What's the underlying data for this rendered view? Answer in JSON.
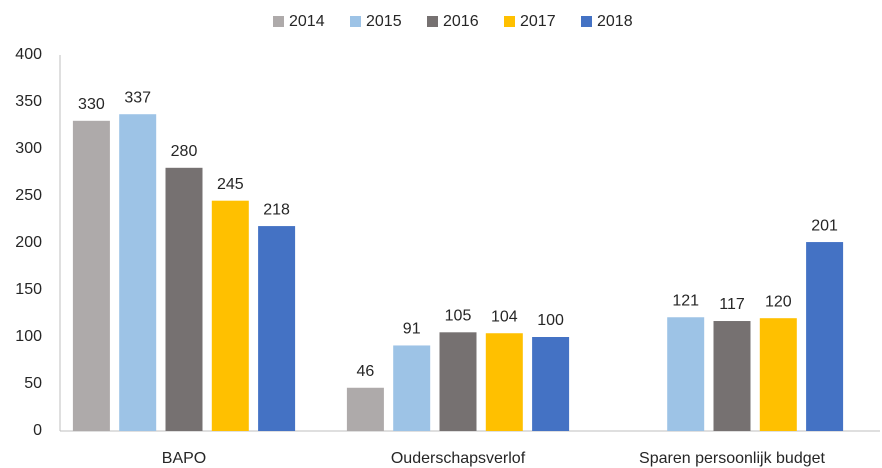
{
  "chart_data": {
    "type": "bar",
    "categories": [
      "BAPO",
      "Ouderschapsverlof",
      "Sparen persoonlijk budget"
    ],
    "series": [
      {
        "name": "2014",
        "color": "#aeaaaa",
        "values": [
          330,
          46,
          null
        ]
      },
      {
        "name": "2015",
        "color": "#9dc3e6",
        "values": [
          337,
          91,
          121
        ]
      },
      {
        "name": "2016",
        "color": "#767171",
        "values": [
          280,
          105,
          117
        ]
      },
      {
        "name": "2017",
        "color": "#ffc000",
        "values": [
          245,
          104,
          120
        ]
      },
      {
        "name": "2018",
        "color": "#4472c4",
        "values": [
          218,
          100,
          201
        ]
      }
    ],
    "ylim": [
      0,
      400
    ],
    "yticks": [
      0,
      50,
      100,
      150,
      200,
      250,
      300,
      350,
      400
    ],
    "grid": false,
    "legend": "top",
    "data_labels": true
  }
}
